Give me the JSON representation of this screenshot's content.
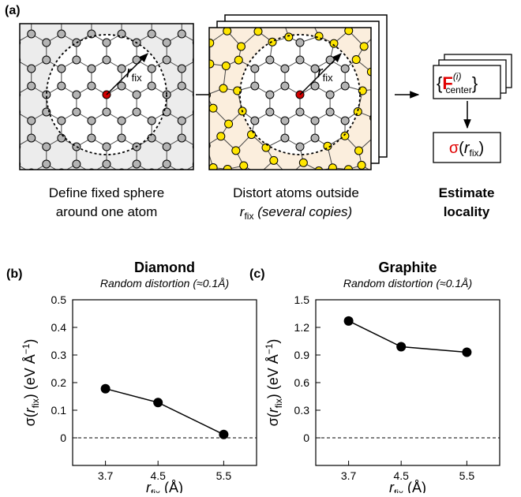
{
  "panel_a": {
    "label": "(a)",
    "radius_label": {
      "symbol": "r",
      "subscript": "fix"
    },
    "step1_caption": [
      "Define fixed sphere",
      "around one atom"
    ],
    "step2_caption": {
      "line1": "Distort atoms outside",
      "symbol": "r",
      "subscript": "fix",
      "rest": " (several copies)"
    },
    "force_label": {
      "open": "{",
      "symbol": "F",
      "subscript": "center",
      "superscript": "(i)",
      "close": "}"
    },
    "sigma_label": {
      "sigma": "σ",
      "open": "(",
      "symbol": "r",
      "subscript": "fix",
      "close": ")"
    },
    "step3_caption": [
      "Estimate",
      "locality"
    ]
  },
  "chart_data": [
    {
      "type": "line",
      "panel_label": "(b)",
      "title": "Diamond",
      "subtitle": "Random distortion (≈0.1Å)",
      "x": [
        3.7,
        4.5,
        5.5
      ],
      "values": [
        0.178,
        0.128,
        0.012
      ],
      "color": "#000000",
      "xlim": [
        3.2,
        6.0
      ],
      "xticks": [
        3.7,
        4.5,
        5.5
      ],
      "ylim": [
        -0.1,
        0.5
      ],
      "yticks": [
        0,
        0.1,
        0.2,
        0.3,
        0.4,
        0.5
      ],
      "reference_line": 0,
      "ylabel": {
        "pre": "σ(",
        "symbol": "r",
        "subscript": "fix",
        "post": ") (eV Å",
        "superscript": "−1",
        "end": ")"
      },
      "xlabel": {
        "symbol": "r",
        "subscript": "fix",
        "post": " (Å)"
      }
    },
    {
      "type": "line",
      "panel_label": "(c)",
      "title": "Graphite",
      "subtitle": "Random distortion (≈0.1Å)",
      "x": [
        3.7,
        4.5,
        5.5
      ],
      "values": [
        1.27,
        0.99,
        0.93
      ],
      "color": "#000000",
      "xlim": [
        3.2,
        6.0
      ],
      "xticks": [
        3.7,
        4.5,
        5.5
      ],
      "ylim": [
        -0.3,
        1.5
      ],
      "yticks": [
        0,
        0.3,
        0.6,
        0.9,
        1.2,
        1.5
      ],
      "reference_line": 0,
      "ylabel": {
        "pre": "σ(",
        "symbol": "r",
        "subscript": "fix",
        "post": ") (eV Å",
        "superscript": "−1",
        "end": ")"
      },
      "xlabel": {
        "symbol": "r",
        "subscript": "fix",
        "post": " (Å)"
      }
    }
  ]
}
